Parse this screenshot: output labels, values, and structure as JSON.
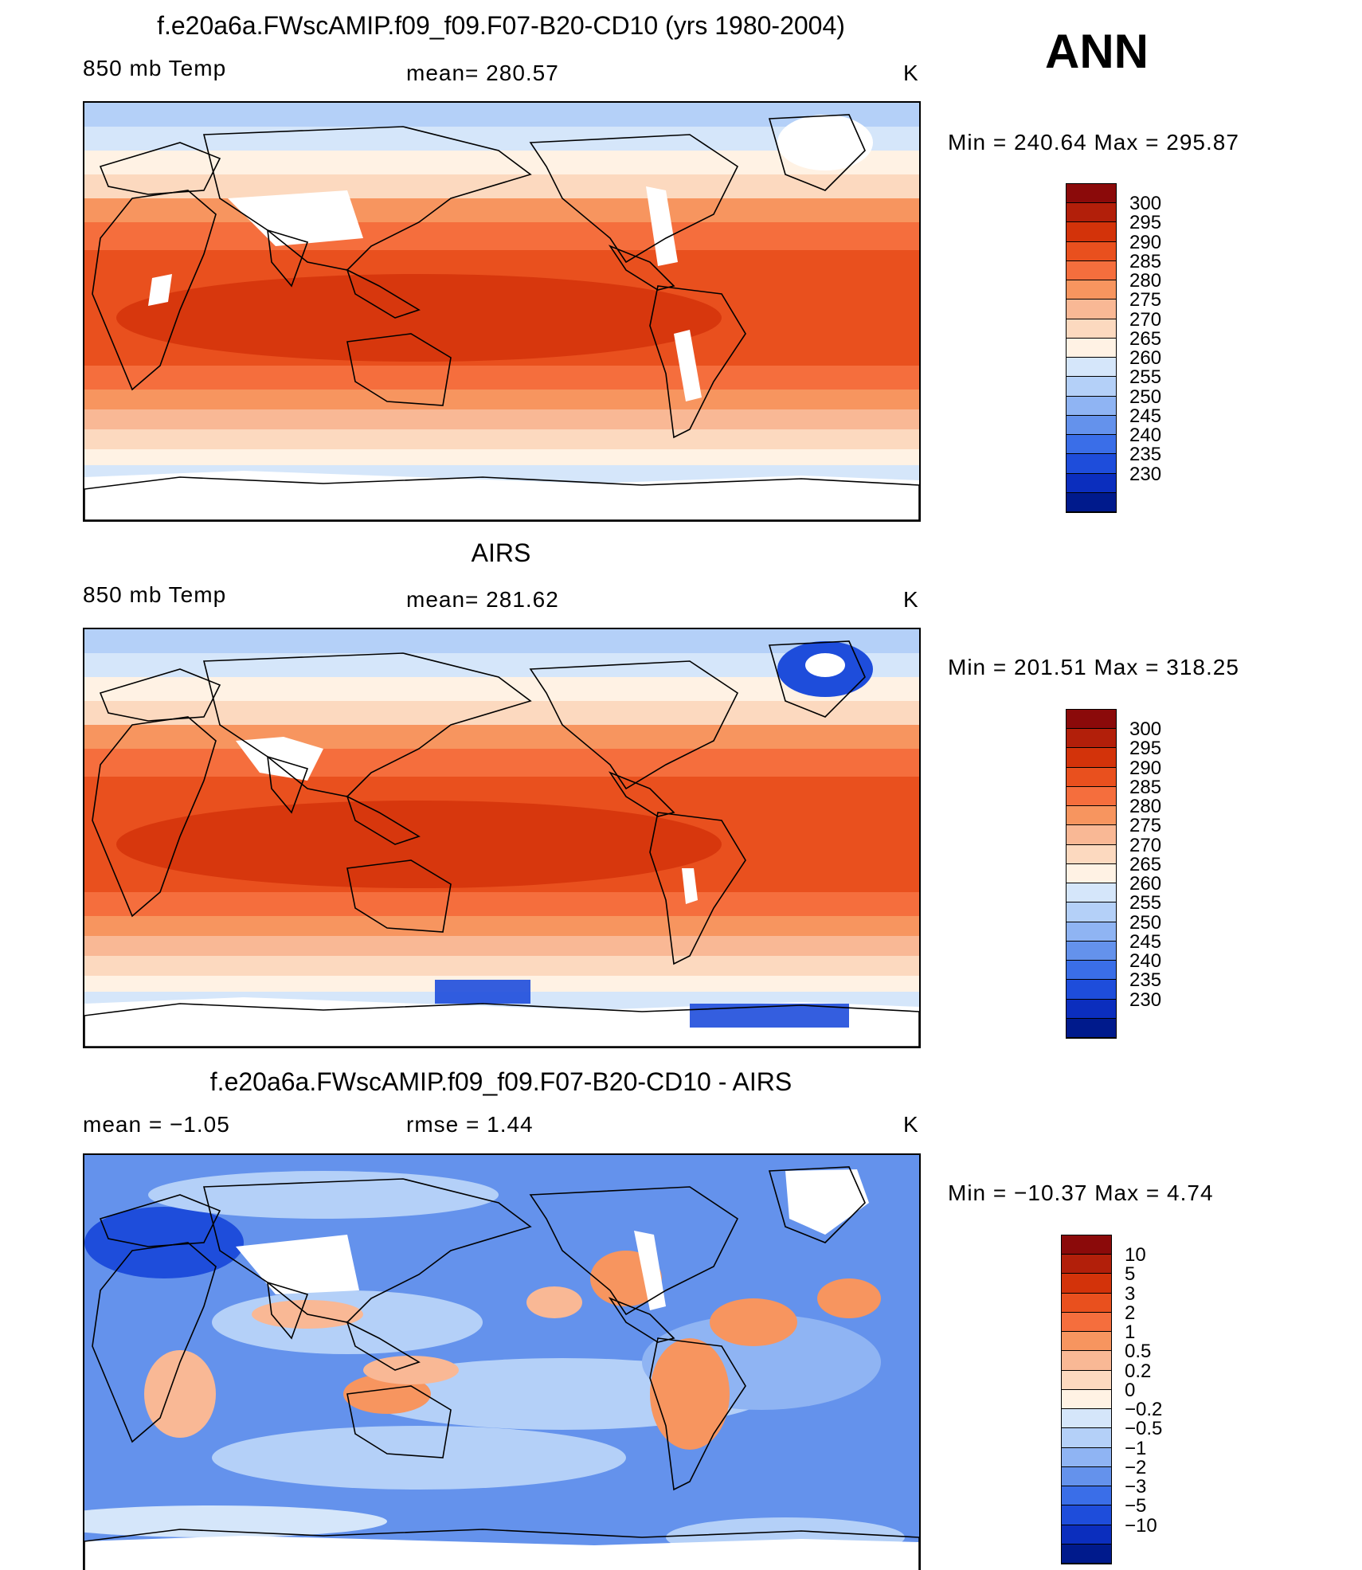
{
  "header": {
    "season": "ANN"
  },
  "panels": [
    {
      "title": "f.e20a6a.FWscAMIP.f09_f09.F07-B20-CD10 (yrs 1980-2004)",
      "left_label": "850 mb Temp",
      "center_label": "mean=  280.57",
      "units": "K",
      "minmax": "Min  =  240.64  Max  =  295.87",
      "kind": "model"
    },
    {
      "title": "AIRS",
      "left_label": "850 mb Temp",
      "center_label": "mean=  281.62",
      "units": "K",
      "minmax": "Min  =  201.51  Max  =  318.25",
      "kind": "obs"
    },
    {
      "title": "f.e20a6a.FWscAMIP.f09_f09.F07-B20-CD10 - AIRS",
      "left_label": "mean  =    −1.05",
      "center_label": "rmse  =     1.44",
      "units": "K",
      "minmax": "Min  =  −10.37  Max  =      4.74",
      "kind": "diff"
    }
  ],
  "colorbars": {
    "temperature": {
      "labels": [
        "300",
        "295",
        "290",
        "285",
        "280",
        "275",
        "270",
        "265",
        "260",
        "255",
        "250",
        "245",
        "240",
        "235",
        "230"
      ],
      "colors": [
        "#8b0a0a",
        "#b21f0a",
        "#d3330a",
        "#e9501e",
        "#f56e3d",
        "#f7955f",
        "#f9b895",
        "#fcd9bf",
        "#fff2e4",
        "#d5e6fa",
        "#b4d0f8",
        "#8fb4f3",
        "#6492ec",
        "#3a6ee8",
        "#1e4ddb",
        "#0b2ebe",
        "#001a8c"
      ]
    },
    "difference": {
      "labels": [
        "10",
        "5",
        "3",
        "2",
        "1",
        "0.5",
        "0.2",
        "0",
        "−0.2",
        "−0.5",
        "−1",
        "−2",
        "−3",
        "−5",
        "−10"
      ],
      "colors": [
        "#8b0a0a",
        "#b21f0a",
        "#d3330a",
        "#e9501e",
        "#f56e3d",
        "#f7955f",
        "#f9b895",
        "#fcd9bf",
        "#fff2e4",
        "#d5e6fa",
        "#b4d0f8",
        "#8fb4f3",
        "#6492ec",
        "#3a6ee8",
        "#1e4ddb",
        "#0b2ebe",
        "#001a8c"
      ]
    }
  }
}
